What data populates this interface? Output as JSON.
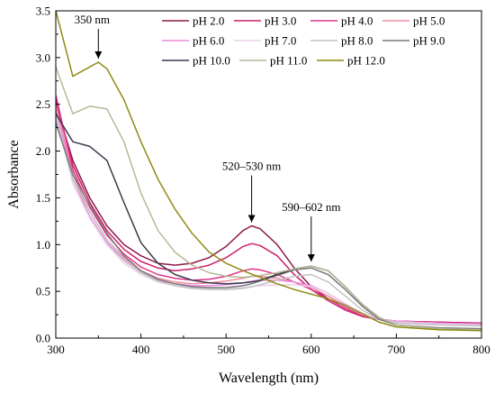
{
  "chart_data": {
    "type": "line",
    "xlabel": "Wavelength (nm)",
    "ylabel": "Absorbance",
    "xlim": [
      300,
      800
    ],
    "ylim": [
      0.0,
      3.5
    ],
    "xticks": [
      300,
      400,
      500,
      600,
      700,
      800
    ],
    "yticks": [
      0.0,
      0.5,
      1.0,
      1.5,
      2.0,
      2.5,
      3.0,
      3.5
    ],
    "xtick_labels": [
      "300",
      "400",
      "500",
      "600",
      "700",
      "800"
    ],
    "ytick_labels": [
      "0.0",
      "0.5",
      "1.0",
      "1.5",
      "2.0",
      "2.5",
      "3.0",
      "3.5"
    ],
    "grid": false,
    "legend_position": "top-right",
    "annotations": [
      {
        "text": "350 nm",
        "x": 350,
        "y": 2.95
      },
      {
        "text": "520–530 nm",
        "x": 530,
        "y": 1.2
      },
      {
        "text": "590–602 nm",
        "x": 600,
        "y": 0.78
      }
    ],
    "series": [
      {
        "name": "pH 2.0",
        "color": "#8b1a4a",
        "x": [
          300,
          320,
          340,
          360,
          380,
          400,
          420,
          440,
          460,
          480,
          500,
          520,
          530,
          540,
          560,
          580,
          600,
          620,
          640,
          660,
          680,
          700,
          750,
          800
        ],
        "y": [
          2.5,
          1.9,
          1.5,
          1.2,
          1.0,
          0.88,
          0.8,
          0.78,
          0.8,
          0.86,
          0.98,
          1.15,
          1.2,
          1.17,
          1.0,
          0.75,
          0.55,
          0.42,
          0.32,
          0.24,
          0.2,
          0.18,
          0.17,
          0.16
        ]
      },
      {
        "name": "pH 3.0",
        "color": "#cc1f6b",
        "x": [
          300,
          320,
          340,
          360,
          380,
          400,
          420,
          440,
          460,
          480,
          500,
          520,
          530,
          540,
          560,
          580,
          600,
          620,
          640,
          660,
          680,
          700,
          750,
          800
        ],
        "y": [
          2.55,
          1.85,
          1.45,
          1.15,
          0.95,
          0.82,
          0.75,
          0.72,
          0.74,
          0.78,
          0.86,
          0.98,
          1.01,
          0.99,
          0.88,
          0.68,
          0.52,
          0.4,
          0.3,
          0.23,
          0.2,
          0.18,
          0.17,
          0.16
        ]
      },
      {
        "name": "pH 4.0",
        "color": "#e0338a",
        "x": [
          300,
          320,
          340,
          360,
          380,
          400,
          420,
          440,
          460,
          480,
          500,
          520,
          530,
          540,
          560,
          580,
          600,
          620,
          640,
          660,
          680,
          700,
          750,
          800
        ],
        "y": [
          2.6,
          1.8,
          1.4,
          1.1,
          0.9,
          0.76,
          0.68,
          0.64,
          0.62,
          0.63,
          0.66,
          0.72,
          0.74,
          0.73,
          0.68,
          0.6,
          0.52,
          0.42,
          0.32,
          0.24,
          0.2,
          0.18,
          0.16,
          0.15
        ]
      },
      {
        "name": "pH 5.0",
        "color": "#f08aa0",
        "x": [
          300,
          320,
          340,
          360,
          380,
          400,
          420,
          440,
          460,
          480,
          500,
          520,
          530,
          540,
          560,
          580,
          600,
          620,
          640,
          660,
          680,
          700,
          750,
          800
        ],
        "y": [
          2.5,
          1.75,
          1.35,
          1.05,
          0.86,
          0.72,
          0.64,
          0.6,
          0.58,
          0.59,
          0.61,
          0.64,
          0.66,
          0.66,
          0.64,
          0.6,
          0.54,
          0.45,
          0.34,
          0.25,
          0.2,
          0.18,
          0.16,
          0.15
        ]
      },
      {
        "name": "pH 6.0",
        "color": "#e98be3",
        "x": [
          300,
          320,
          340,
          360,
          380,
          400,
          420,
          440,
          460,
          480,
          500,
          520,
          530,
          540,
          560,
          580,
          600,
          620,
          640,
          660,
          680,
          700,
          750,
          800
        ],
        "y": [
          2.45,
          1.7,
          1.3,
          1.02,
          0.83,
          0.7,
          0.62,
          0.58,
          0.56,
          0.56,
          0.57,
          0.59,
          0.61,
          0.62,
          0.62,
          0.6,
          0.56,
          0.48,
          0.36,
          0.26,
          0.2,
          0.18,
          0.16,
          0.15
        ]
      },
      {
        "name": "pH 7.0",
        "color": "#e8d2e8",
        "x": [
          300,
          320,
          340,
          360,
          380,
          400,
          420,
          440,
          460,
          480,
          500,
          520,
          530,
          540,
          560,
          580,
          600,
          620,
          640,
          660,
          680,
          700,
          750,
          800
        ],
        "y": [
          2.4,
          1.65,
          1.28,
          1.0,
          0.8,
          0.68,
          0.6,
          0.56,
          0.54,
          0.53,
          0.53,
          0.54,
          0.55,
          0.56,
          0.57,
          0.57,
          0.55,
          0.48,
          0.37,
          0.27,
          0.2,
          0.17,
          0.15,
          0.14
        ]
      },
      {
        "name": "pH 8.0",
        "color": "#c2c2c2",
        "x": [
          300,
          320,
          340,
          360,
          380,
          400,
          420,
          440,
          460,
          480,
          500,
          520,
          530,
          540,
          560,
          580,
          600,
          620,
          640,
          660,
          680,
          700,
          750,
          800
        ],
        "y": [
          2.35,
          1.7,
          1.35,
          1.05,
          0.84,
          0.7,
          0.61,
          0.56,
          0.53,
          0.52,
          0.52,
          0.53,
          0.55,
          0.57,
          0.62,
          0.66,
          0.68,
          0.6,
          0.45,
          0.3,
          0.2,
          0.16,
          0.14,
          0.13
        ]
      },
      {
        "name": "pH 9.0",
        "color": "#7a7a7a",
        "x": [
          300,
          320,
          340,
          360,
          380,
          400,
          420,
          440,
          460,
          480,
          500,
          520,
          530,
          540,
          560,
          580,
          600,
          620,
          640,
          660,
          680,
          700,
          750,
          800
        ],
        "y": [
          2.3,
          1.75,
          1.42,
          1.12,
          0.88,
          0.72,
          0.63,
          0.58,
          0.55,
          0.54,
          0.54,
          0.56,
          0.58,
          0.61,
          0.67,
          0.73,
          0.75,
          0.68,
          0.52,
          0.34,
          0.2,
          0.14,
          0.11,
          0.1
        ]
      },
      {
        "name": "pH 10.0",
        "color": "#3a3a4a",
        "x": [
          300,
          320,
          340,
          360,
          380,
          400,
          420,
          440,
          460,
          480,
          500,
          520,
          530,
          540,
          560,
          580,
          600,
          620,
          640,
          660,
          680,
          700,
          750,
          800
        ],
        "y": [
          2.4,
          2.1,
          2.05,
          1.9,
          1.45,
          1.02,
          0.8,
          0.68,
          0.62,
          0.59,
          0.58,
          0.59,
          0.6,
          0.62,
          0.68,
          0.74,
          0.77,
          0.72,
          0.55,
          0.36,
          0.22,
          0.14,
          0.1,
          0.09
        ]
      },
      {
        "name": "pH 11.0",
        "color": "#b8b898",
        "x": [
          300,
          320,
          340,
          360,
          380,
          400,
          420,
          440,
          460,
          480,
          500,
          520,
          530,
          540,
          560,
          580,
          600,
          620,
          640,
          660,
          680,
          700,
          750,
          800
        ],
        "y": [
          2.9,
          2.4,
          2.48,
          2.45,
          2.1,
          1.55,
          1.15,
          0.92,
          0.78,
          0.7,
          0.66,
          0.65,
          0.66,
          0.67,
          0.7,
          0.74,
          0.77,
          0.72,
          0.55,
          0.36,
          0.22,
          0.14,
          0.1,
          0.09
        ]
      },
      {
        "name": "pH 12.0",
        "color": "#8f8a12",
        "x": [
          300,
          320,
          340,
          350,
          360,
          380,
          400,
          420,
          440,
          460,
          480,
          500,
          520,
          540,
          560,
          580,
          600,
          620,
          640,
          660,
          680,
          700,
          750,
          800
        ],
        "y": [
          3.5,
          2.8,
          2.9,
          2.95,
          2.88,
          2.55,
          2.1,
          1.7,
          1.38,
          1.12,
          0.92,
          0.8,
          0.72,
          0.65,
          0.58,
          0.52,
          0.47,
          0.42,
          0.35,
          0.26,
          0.17,
          0.12,
          0.09,
          0.08
        ]
      }
    ]
  }
}
